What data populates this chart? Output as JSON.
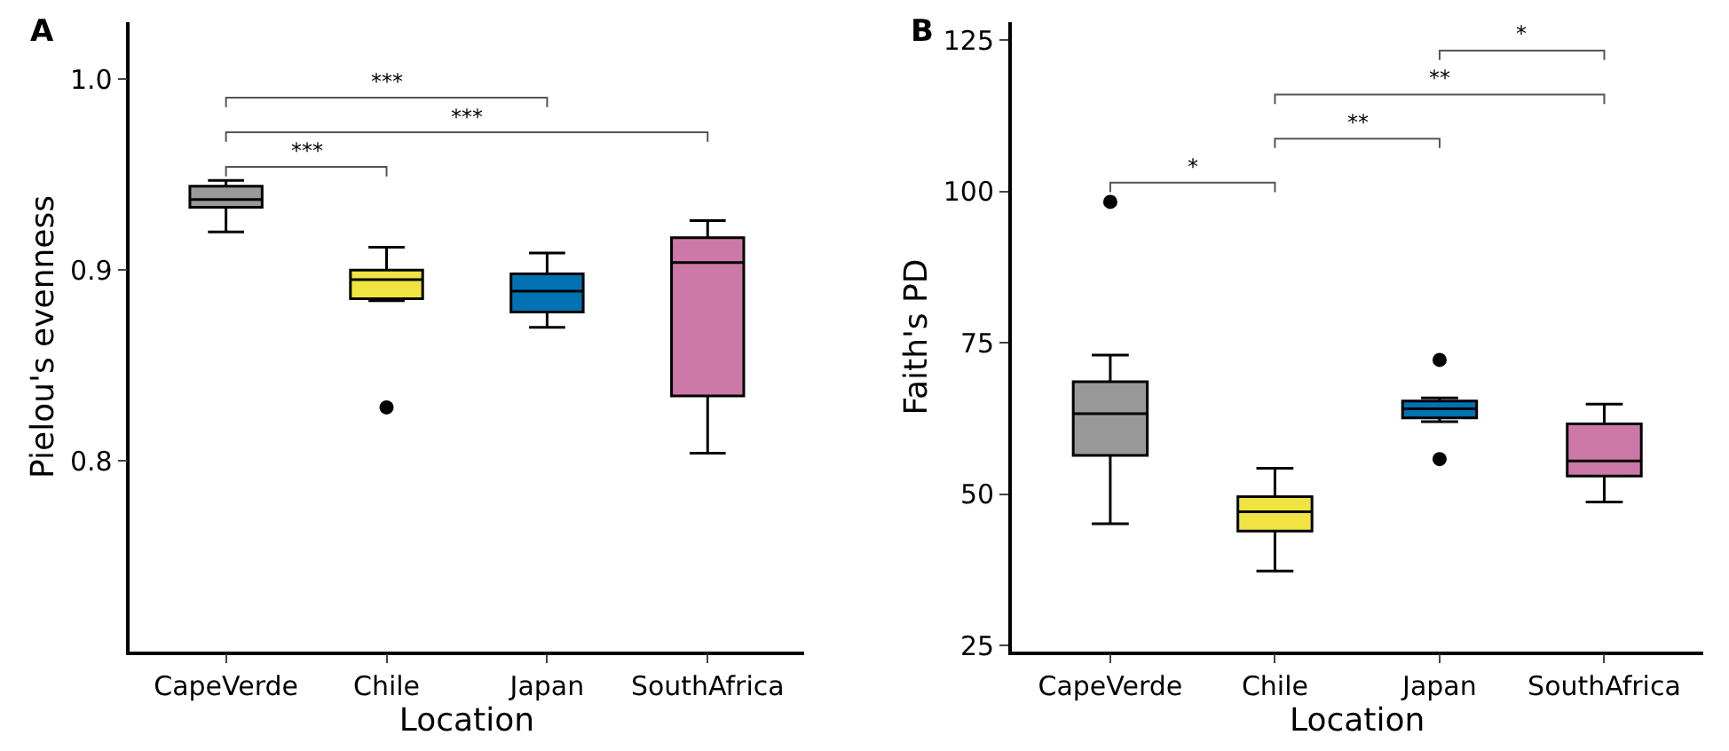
{
  "chart_data": [
    {
      "type": "box",
      "title": "A",
      "xlabel": "Location",
      "ylabel": "Pielou's evenness",
      "categories": [
        "CapeVerde",
        "Chile",
        "Japan",
        "SouthAfrica"
      ],
      "colors": [
        "#999999",
        "#f0e442",
        "#0072b2",
        "#cc79a7"
      ],
      "boxes": [
        {
          "low": 0.92,
          "q1": 0.933,
          "median": 0.937,
          "q3": 0.944,
          "high": 0.947
        },
        {
          "low": 0.884,
          "q1": 0.885,
          "median": 0.895,
          "q3": 0.9,
          "high": 0.912,
          "outliers": [
            0.828
          ]
        },
        {
          "low": 0.87,
          "q1": 0.878,
          "median": 0.889,
          "q3": 0.898,
          "high": 0.909
        },
        {
          "low": 0.804,
          "q1": 0.834,
          "median": 0.904,
          "q3": 0.917,
          "high": 0.926
        }
      ],
      "ylim": [
        0.7,
        1.03
      ],
      "yticks": [
        0.8,
        0.9,
        {
          "value": 1.0,
          "label": "1.0"
        }
      ],
      "annotations": [
        "***",
        "***",
        "***"
      ]
    },
    {
      "type": "box",
      "title": "B",
      "xlabel": "Location",
      "ylabel": "Faith's PD",
      "categories": [
        "CapeVerde",
        "Chile",
        "Japan",
        "SouthAfrica"
      ],
      "colors": [
        "#999999",
        "#f0e442",
        "#0072b2",
        "#cc79a7"
      ],
      "boxes": [
        {
          "low": 45.1,
          "q1": 56.4,
          "median": 63.3,
          "q3": 68.6,
          "high": 73.0,
          "outliers": [
            98.3
          ]
        },
        {
          "low": 37.3,
          "q1": 43.9,
          "median": 47.1,
          "q3": 49.6,
          "high": 54.3
        },
        {
          "low": 62.0,
          "q1": 62.6,
          "median": 64.1,
          "q3": 65.4,
          "high": 65.9,
          "outliers": [
            72.2,
            55.8
          ]
        },
        {
          "low": 48.7,
          "q1": 53.0,
          "median": 55.5,
          "q3": 61.6,
          "high": 64.9
        }
      ],
      "ylim": [
        24,
        128
      ],
      "yticks": [
        25,
        50,
        75,
        100,
        125
      ],
      "annotations": [
        "*",
        "**",
        "**",
        "*"
      ]
    }
  ]
}
